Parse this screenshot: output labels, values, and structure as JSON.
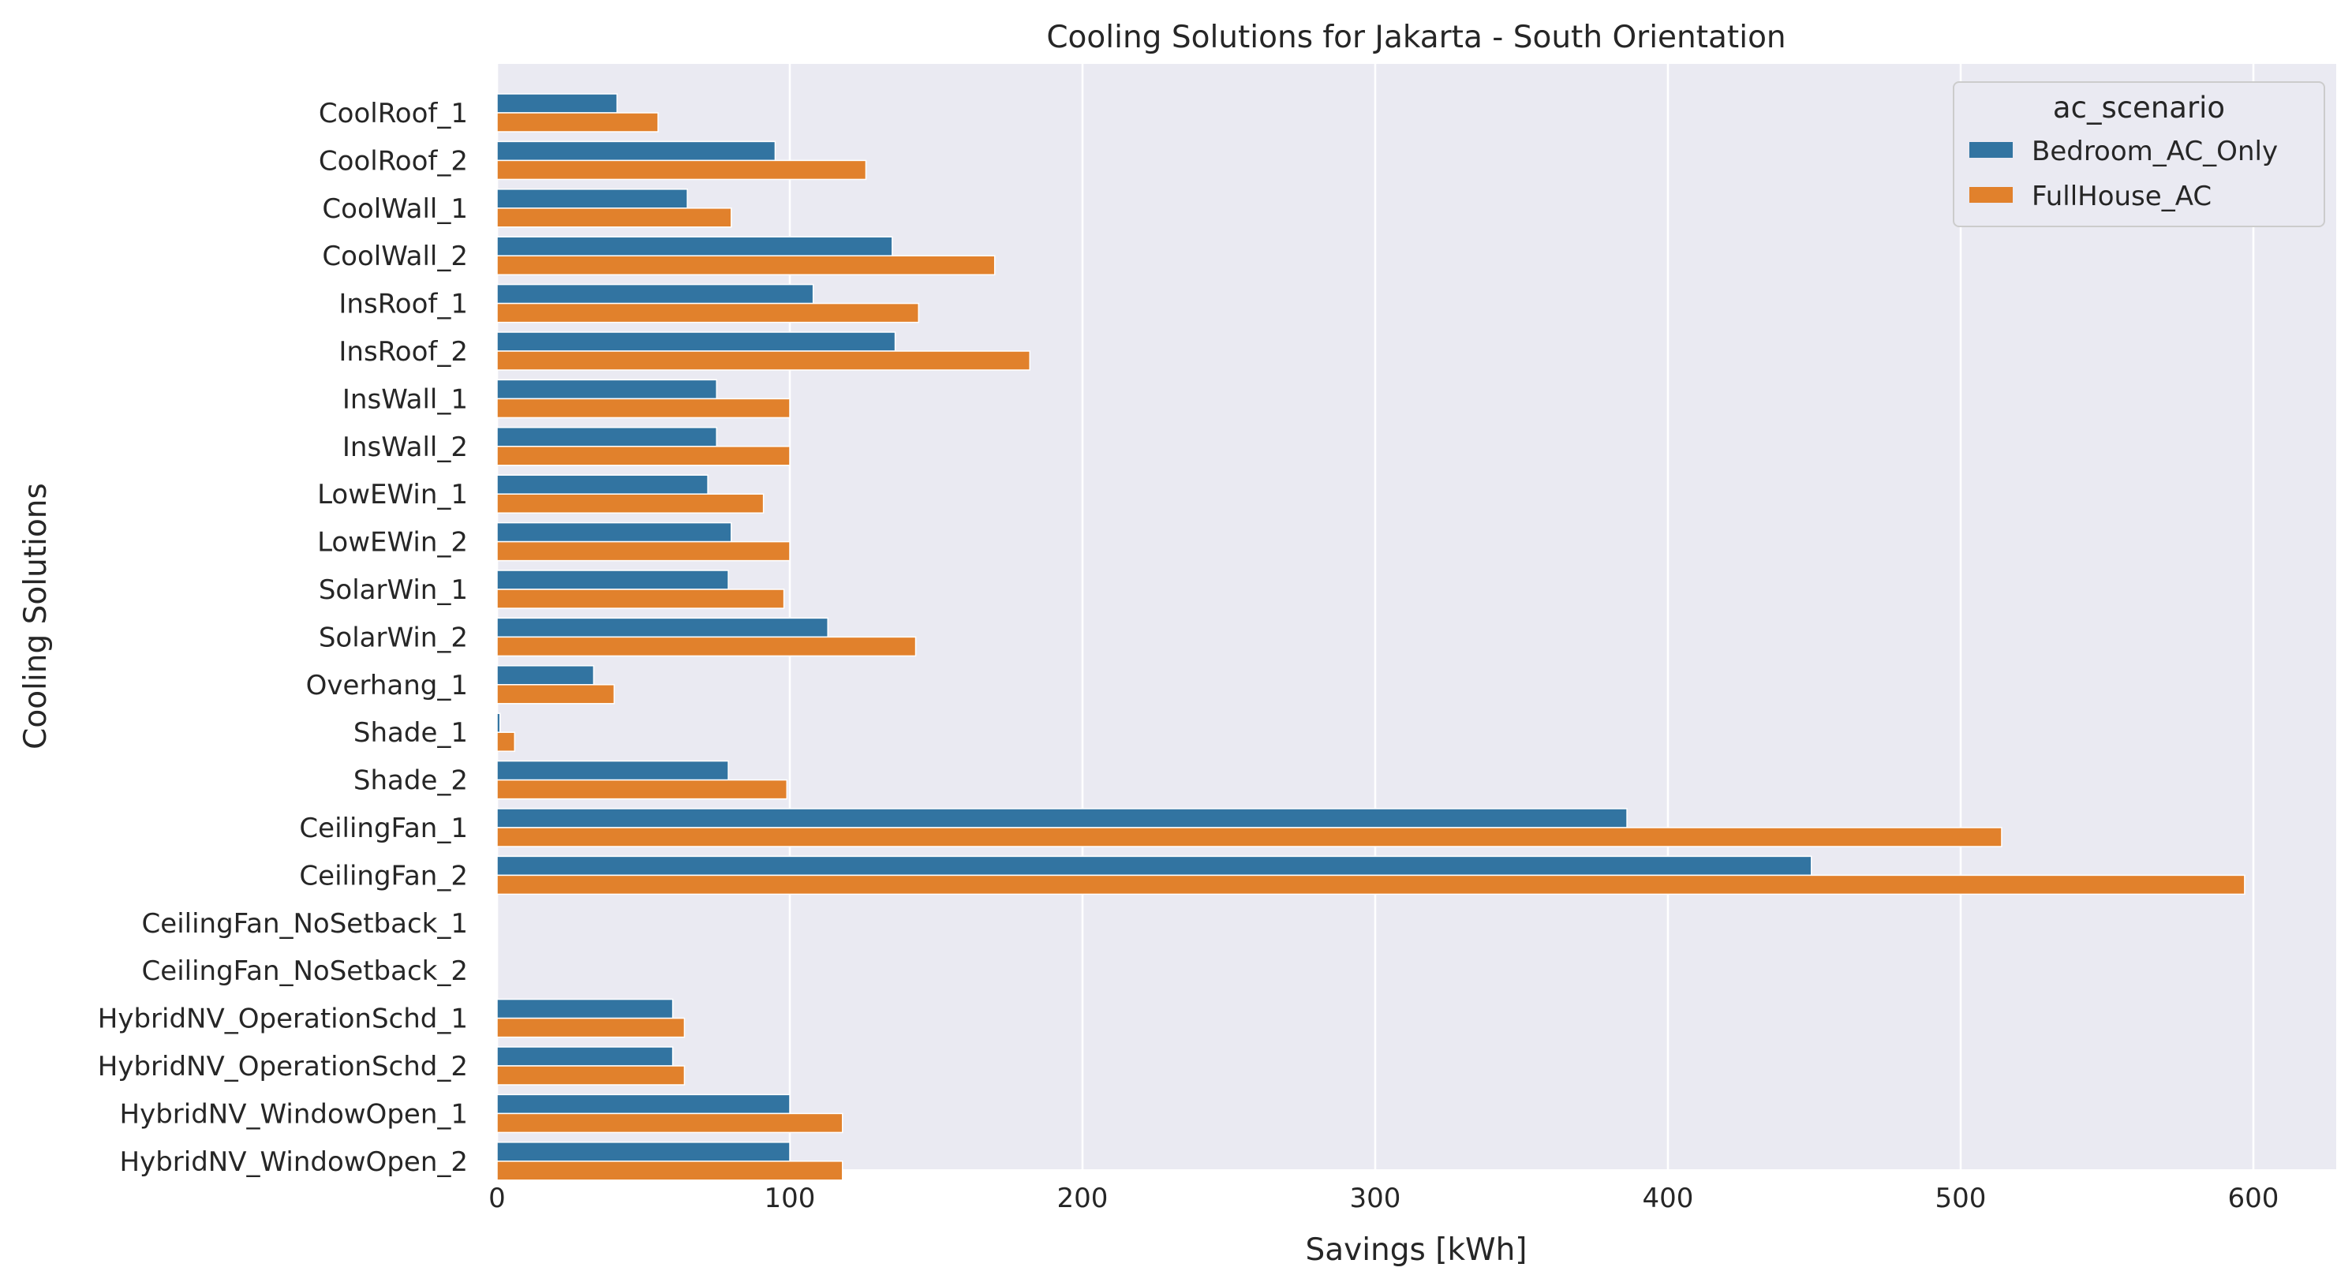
{
  "chart_data": {
    "type": "bar",
    "orientation": "horizontal",
    "title": "Cooling Solutions for Jakarta - South Orientation",
    "xlabel": "Savings [kWh]",
    "ylabel": "Cooling Solutions",
    "xlim": [
      0,
      628
    ],
    "xticks": [
      0,
      100,
      200,
      300,
      400,
      500,
      600
    ],
    "grid": "vertical gridlines",
    "legend_placement": "top-right",
    "legend_title": "ac_scenario",
    "categories": [
      "CoolRoof_1",
      "CoolRoof_2",
      "CoolWall_1",
      "CoolWall_2",
      "InsRoof_1",
      "InsRoof_2",
      "InsWall_1",
      "InsWall_2",
      "LowEWin_1",
      "LowEWin_2",
      "SolarWin_1",
      "SolarWin_2",
      "Overhang_1",
      "Shade_1",
      "Shade_2",
      "CeilingFan_1",
      "CeilingFan_2",
      "CeilingFan_NoSetback_1",
      "CeilingFan_NoSetback_2",
      "HybridNV_OperationSchd_1",
      "HybridNV_OperationSchd_2",
      "HybridNV_WindowOpen_1",
      "HybridNV_WindowOpen_2"
    ],
    "series": [
      {
        "name": "Bedroom_AC_Only",
        "color": "#3274a1",
        "values": [
          41,
          95,
          65,
          135,
          108,
          136,
          75,
          75,
          72,
          80,
          79,
          113,
          33,
          1,
          79,
          386,
          449,
          null,
          null,
          60,
          60,
          100,
          100
        ]
      },
      {
        "name": "FullHouse_AC",
        "color": "#e1812c",
        "values": [
          55,
          126,
          80,
          170,
          144,
          182,
          100,
          100,
          91,
          100,
          98,
          143,
          40,
          6,
          99,
          514,
          597,
          null,
          null,
          64,
          64,
          118,
          118
        ]
      }
    ]
  },
  "style": {
    "plot_background": "#eaeaf2",
    "grid_color": "#ffffff",
    "text_color": "#262626"
  }
}
